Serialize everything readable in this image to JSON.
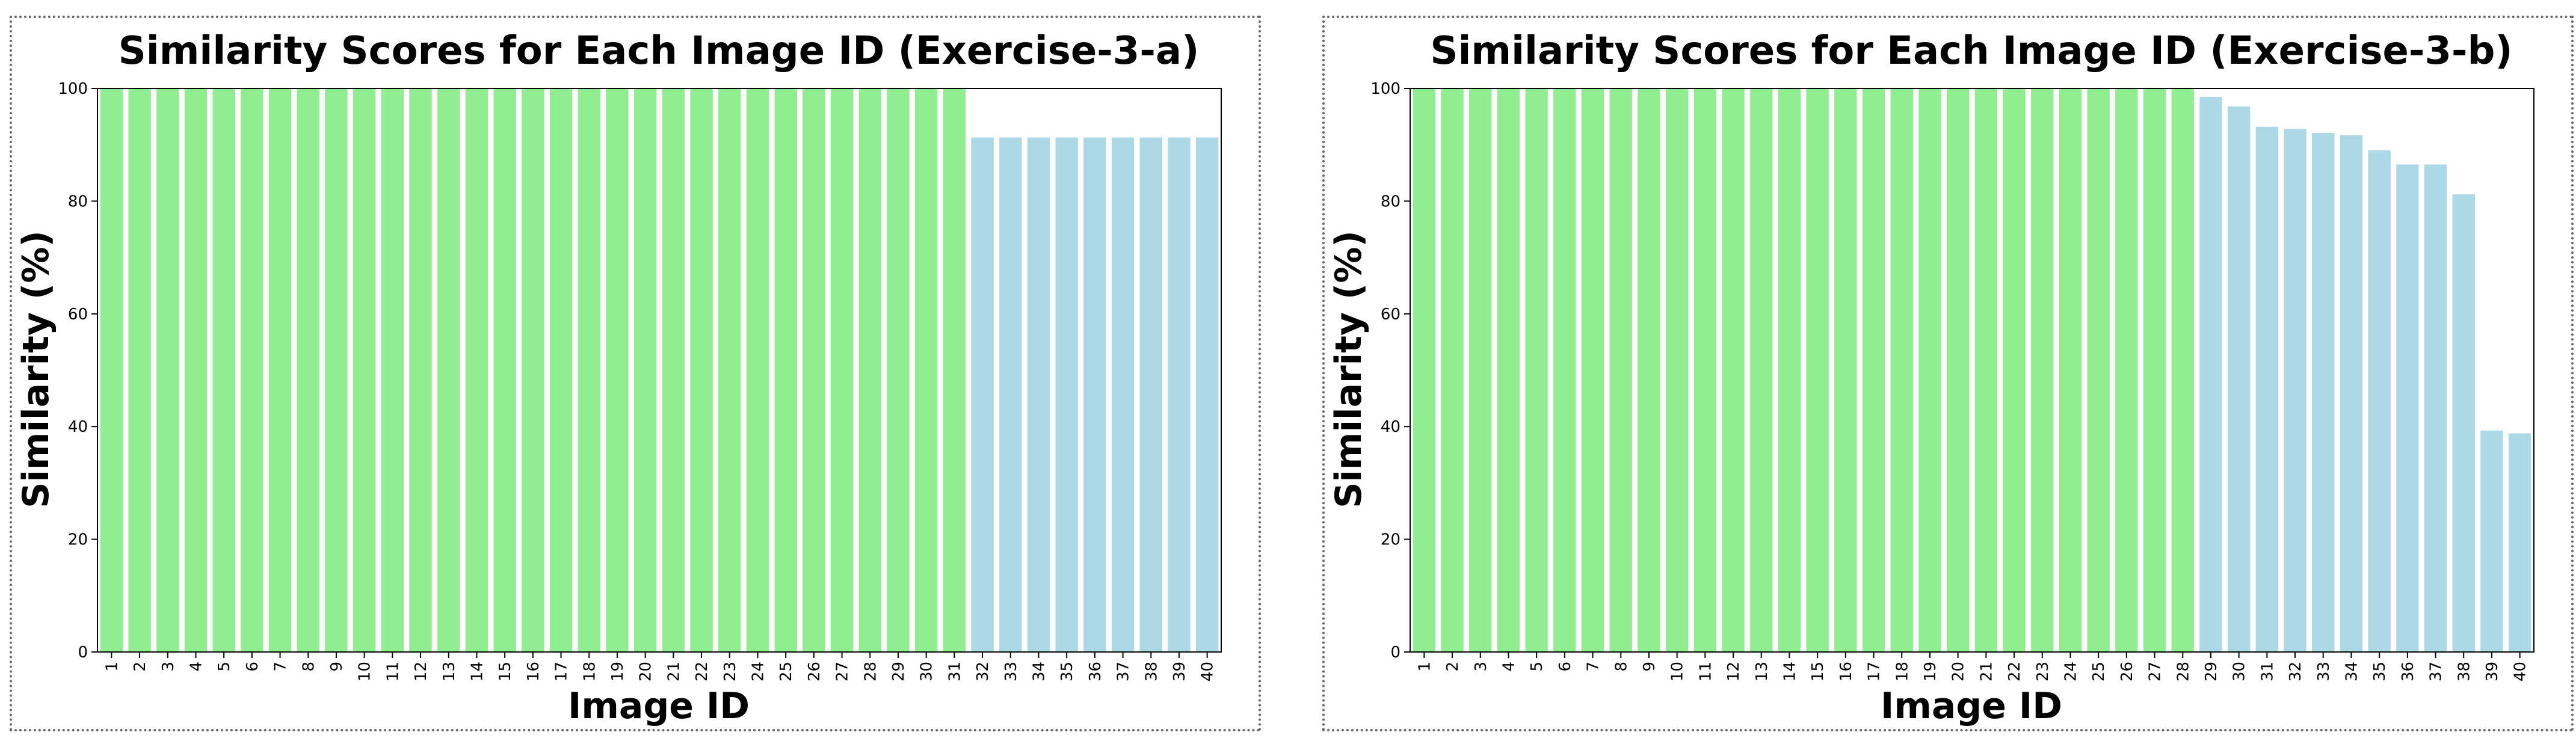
{
  "colors": {
    "match_bar": "#90EE90",
    "other_bar": "#ADD8E6"
  },
  "chart_data": [
    {
      "type": "bar",
      "title": "Similarity Scores for Each Image ID (Exercise-3-a)",
      "xlabel": "Image ID",
      "ylabel": "Similarity (%)",
      "ylim": [
        0,
        100
      ],
      "yticks": [
        0,
        20,
        40,
        60,
        80,
        100
      ],
      "categories": [
        "1",
        "2",
        "3",
        "4",
        "5",
        "6",
        "7",
        "8",
        "9",
        "10",
        "11",
        "12",
        "13",
        "14",
        "15",
        "16",
        "17",
        "18",
        "19",
        "20",
        "21",
        "22",
        "23",
        "24",
        "25",
        "26",
        "27",
        "28",
        "29",
        "30",
        "31",
        "32",
        "33",
        "34",
        "35",
        "36",
        "37",
        "38",
        "39",
        "40"
      ],
      "values": [
        100,
        100,
        100,
        100,
        100,
        100,
        100,
        100,
        100,
        100,
        100,
        100,
        100,
        100,
        100,
        100,
        100,
        100,
        100,
        100,
        100,
        100,
        100,
        100,
        100,
        100,
        100,
        100,
        100,
        100,
        100,
        91.3,
        91.3,
        91.3,
        91.3,
        91.3,
        91.3,
        91.3,
        91.3,
        91.3
      ],
      "bar_colors": [
        "match",
        "match",
        "match",
        "match",
        "match",
        "match",
        "match",
        "match",
        "match",
        "match",
        "match",
        "match",
        "match",
        "match",
        "match",
        "match",
        "match",
        "match",
        "match",
        "match",
        "match",
        "match",
        "match",
        "match",
        "match",
        "match",
        "match",
        "match",
        "match",
        "match",
        "match",
        "other",
        "other",
        "other",
        "other",
        "other",
        "other",
        "other",
        "other",
        "other"
      ]
    },
    {
      "type": "bar",
      "title": "Similarity Scores for Each Image ID (Exercise-3-b)",
      "xlabel": "Image ID",
      "ylabel": "Similarity (%)",
      "ylim": [
        0,
        100
      ],
      "yticks": [
        0,
        20,
        40,
        60,
        80,
        100
      ],
      "categories": [
        "1",
        "2",
        "3",
        "4",
        "5",
        "6",
        "7",
        "8",
        "9",
        "10",
        "11",
        "12",
        "13",
        "14",
        "15",
        "16",
        "17",
        "18",
        "19",
        "20",
        "21",
        "22",
        "23",
        "24",
        "25",
        "26",
        "27",
        "28",
        "29",
        "30",
        "31",
        "32",
        "33",
        "34",
        "35",
        "36",
        "37",
        "38",
        "39",
        "40"
      ],
      "values": [
        100,
        100,
        100,
        100,
        100,
        100,
        100,
        100,
        100,
        100,
        100,
        100,
        100,
        100,
        100,
        100,
        100,
        100,
        100,
        100,
        100,
        100,
        100,
        100,
        100,
        100,
        100,
        100,
        98.5,
        96.8,
        93.2,
        92.8,
        92.1,
        91.7,
        89.0,
        86.5,
        86.5,
        81.2,
        39.3,
        38.8
      ],
      "bar_colors": [
        "match",
        "match",
        "match",
        "match",
        "match",
        "match",
        "match",
        "match",
        "match",
        "match",
        "match",
        "match",
        "match",
        "match",
        "match",
        "match",
        "match",
        "match",
        "match",
        "match",
        "match",
        "match",
        "match",
        "match",
        "match",
        "match",
        "match",
        "match",
        "other",
        "other",
        "other",
        "other",
        "other",
        "other",
        "other",
        "other",
        "other",
        "other",
        "other",
        "other"
      ]
    }
  ]
}
